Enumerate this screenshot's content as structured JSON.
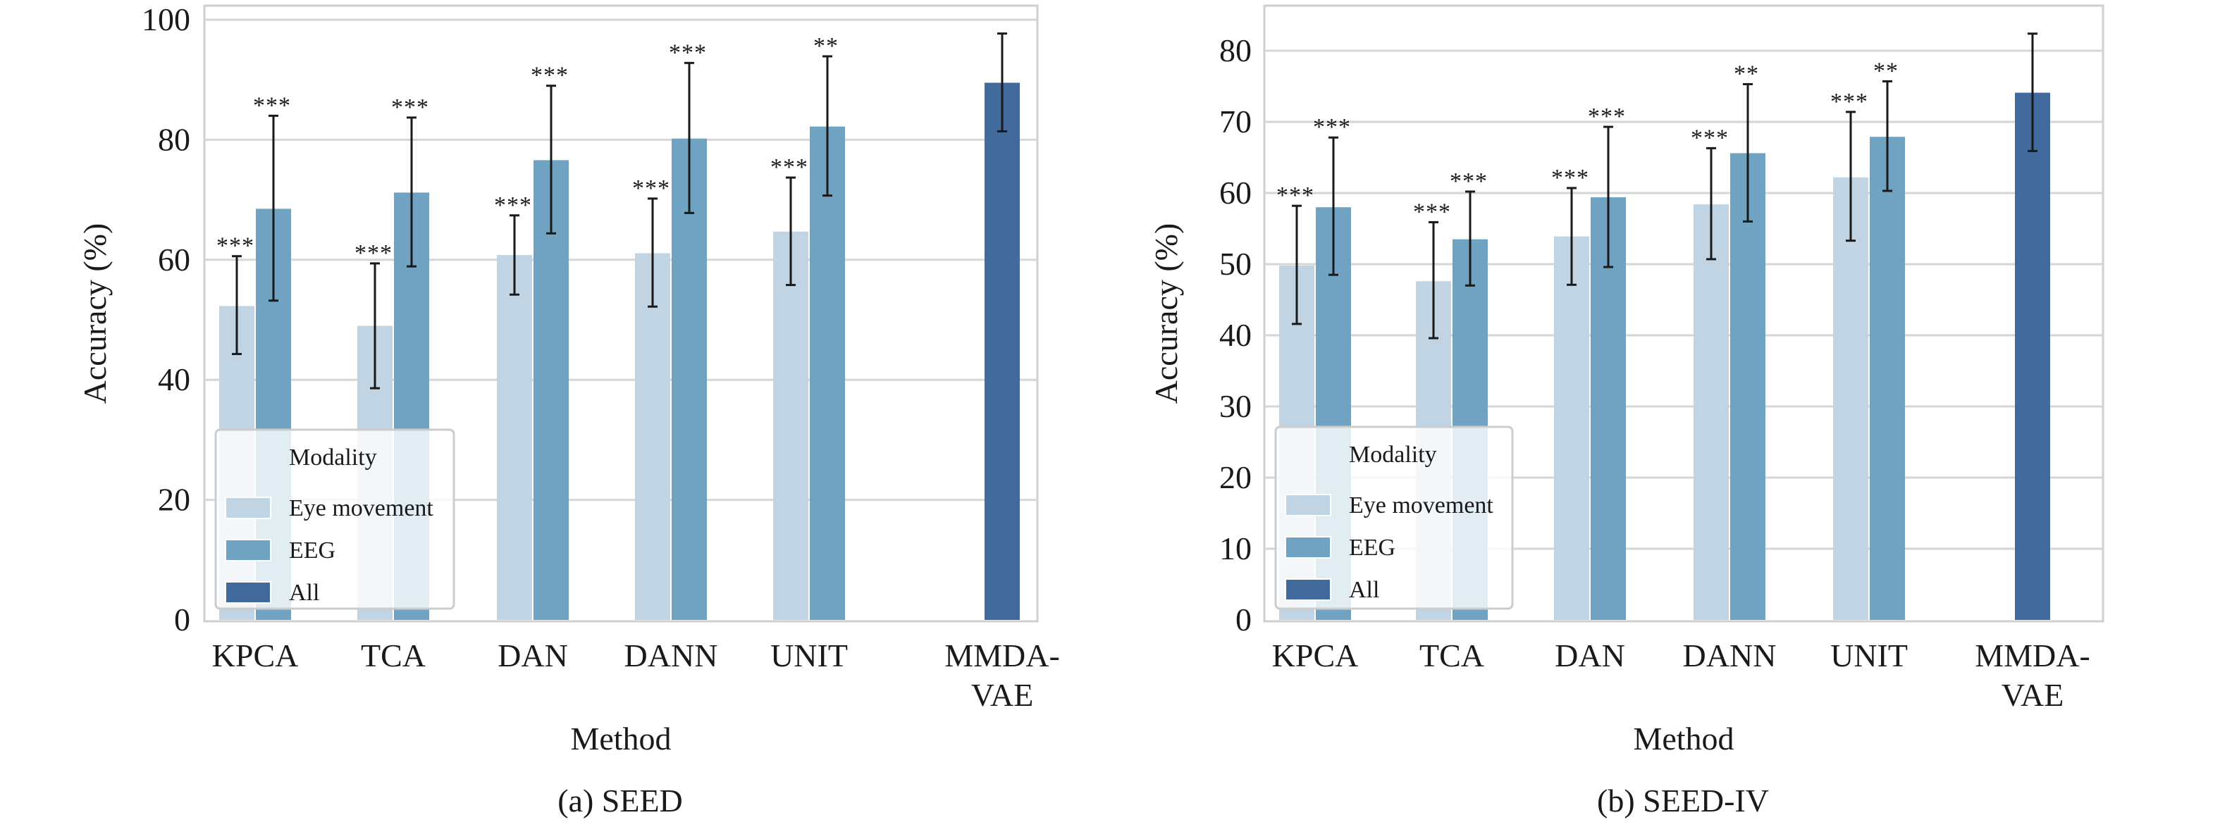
{
  "chart_data": [
    {
      "type": "bar",
      "caption": "(a) SEED",
      "xlabel": "Method",
      "ylabel": "Accuracy (%)",
      "ylim": [
        0,
        100
      ],
      "yticks": [
        0,
        20,
        40,
        60,
        80,
        100
      ],
      "grid": true,
      "legend": {
        "title": "Modality",
        "placement": "lower-left"
      },
      "categories": [
        "KPCA",
        "TCA",
        "DAN",
        "DANN",
        "UNIT",
        "MMDA-VAE"
      ],
      "category_lines": [
        [
          "KPCA"
        ],
        [
          "TCA"
        ],
        [
          "DAN"
        ],
        [
          "DANN"
        ],
        [
          "UNIT"
        ],
        [
          "MMDA-",
          "VAE"
        ]
      ],
      "series": [
        {
          "name": "Eye movement",
          "color": "#c1d4e3",
          "values": [
            52.3,
            49.0,
            60.8,
            61.1,
            64.7,
            null
          ],
          "err_low": [
            44.3,
            38.6,
            54.2,
            52.2,
            55.8,
            null
          ],
          "err_high": [
            60.6,
            59.4,
            67.4,
            70.2,
            73.7,
            null
          ],
          "significance": [
            "***",
            "***",
            "***",
            "***",
            "***",
            null
          ]
        },
        {
          "name": "EEG",
          "color": "#6fa3c1",
          "values": [
            68.5,
            71.2,
            76.6,
            80.2,
            82.2,
            null
          ],
          "err_low": [
            53.2,
            58.9,
            64.4,
            67.8,
            70.7,
            null
          ],
          "err_high": [
            84.0,
            83.7,
            89.0,
            92.8,
            93.9,
            null
          ],
          "significance": [
            "***",
            "***",
            "***",
            "***",
            "**",
            null
          ]
        },
        {
          "name": "All",
          "color": "#426a9d",
          "values": [
            null,
            null,
            null,
            null,
            null,
            89.5
          ],
          "err_low": [
            null,
            null,
            null,
            null,
            null,
            81.4
          ],
          "err_high": [
            null,
            null,
            null,
            null,
            null,
            97.7
          ],
          "significance": [
            null,
            null,
            null,
            null,
            null,
            null
          ]
        }
      ]
    },
    {
      "type": "bar",
      "caption": "(b) SEED-IV",
      "xlabel": "Method",
      "ylabel": "Accuracy (%)",
      "ylim": [
        0,
        86
      ],
      "yticks": [
        0,
        10,
        20,
        30,
        40,
        50,
        60,
        70,
        80
      ],
      "grid": true,
      "legend": {
        "title": "Modality",
        "placement": "lower-left"
      },
      "categories": [
        "KPCA",
        "TCA",
        "DAN",
        "DANN",
        "UNIT",
        "MMDA-VAE"
      ],
      "category_lines": [
        [
          "KPCA"
        ],
        [
          "TCA"
        ],
        [
          "DAN"
        ],
        [
          "DANN"
        ],
        [
          "UNIT"
        ],
        [
          "MMDA-",
          "VAE"
        ]
      ],
      "series": [
        {
          "name": "Eye movement",
          "color": "#c1d4e3",
          "values": [
            49.8,
            47.6,
            53.9,
            58.4,
            62.2,
            null
          ],
          "err_low": [
            41.6,
            39.6,
            47.1,
            50.7,
            53.3,
            null
          ],
          "err_high": [
            58.2,
            55.9,
            60.7,
            66.3,
            71.4,
            null
          ],
          "significance": [
            "***",
            "***",
            "***",
            "***",
            "***",
            null
          ]
        },
        {
          "name": "EEG",
          "color": "#6fa3c1",
          "values": [
            58.0,
            53.5,
            59.4,
            65.6,
            67.9,
            null
          ],
          "err_low": [
            48.5,
            47.0,
            49.6,
            56.0,
            60.3,
            null
          ],
          "err_high": [
            67.8,
            60.2,
            69.3,
            75.3,
            75.7,
            null
          ],
          "significance": [
            "***",
            "***",
            "***",
            "**",
            "**",
            null
          ]
        },
        {
          "name": "All",
          "color": "#426a9d",
          "values": [
            null,
            null,
            null,
            null,
            null,
            74.1
          ],
          "err_low": [
            null,
            null,
            null,
            null,
            null,
            65.9
          ],
          "err_high": [
            null,
            null,
            null,
            null,
            null,
            82.4
          ],
          "significance": [
            null,
            null,
            null,
            null,
            null,
            null
          ]
        }
      ]
    }
  ]
}
